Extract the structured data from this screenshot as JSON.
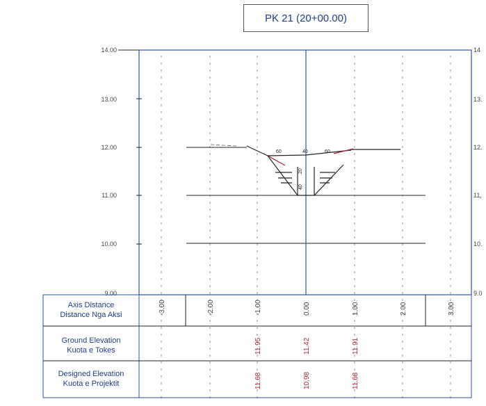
{
  "title": "PK 21 (20+00.00)",
  "y_axis": {
    "ticks": [
      "14.00",
      "13.00",
      "12.00",
      "11.00",
      "10.00",
      "9.00"
    ],
    "right_ticks": [
      "14",
      "13.",
      "12.",
      "11,",
      "10.",
      "9.0"
    ]
  },
  "dimension_labels": {
    "top": [
      "60",
      "40",
      "60"
    ],
    "side": [
      "20",
      "40"
    ]
  },
  "table": {
    "rows": [
      {
        "label1": "Axis Distance",
        "label2": "Distance Nga Aksi"
      },
      {
        "label1": "Ground Elevation",
        "label2": "Kuota e Tokes"
      },
      {
        "label1": "Designed Elevation",
        "label2": "Kuota e Projektit"
      }
    ],
    "axis_distances": [
      "-3.00",
      "-2.00",
      "-1.00",
      "0.00",
      "1.00",
      "2.00",
      "3.00"
    ],
    "ground_elevations": [
      "11.95",
      "11.42",
      "11.91"
    ],
    "designed_elevations": [
      "11.68",
      "10.98",
      "11.68"
    ]
  },
  "colors": {
    "axis_blue": "#2c4fa8",
    "value_red": "#9c2a3a",
    "line": "#222222"
  }
}
